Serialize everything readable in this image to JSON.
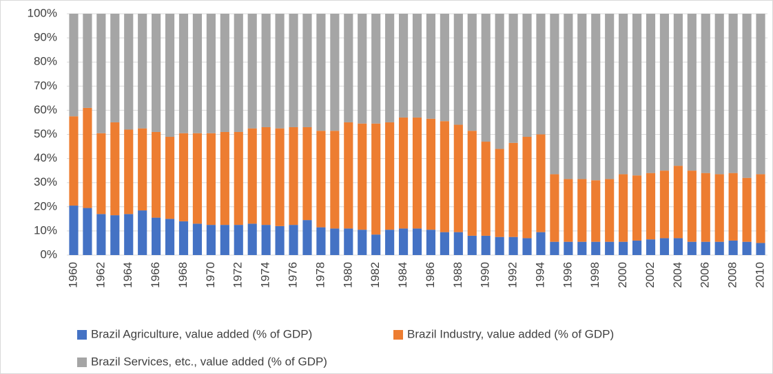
{
  "chart_data": {
    "type": "stacked_bar_100",
    "categories": [
      "1960",
      null,
      "1962",
      null,
      "1964",
      null,
      "1966",
      null,
      "1968",
      null,
      "1970",
      null,
      "1972",
      null,
      "1974",
      null,
      "1976",
      null,
      "1978",
      null,
      "1980",
      null,
      "1982",
      null,
      "1984",
      null,
      "1986",
      null,
      "1988",
      null,
      "1990",
      null,
      "1992",
      null,
      "1994",
      null,
      "1996",
      null,
      "1998",
      null,
      "2000",
      null,
      "2002",
      null,
      "2004",
      null,
      "2006",
      null,
      "2008",
      null,
      "2010"
    ],
    "series": [
      {
        "name": "Brazil Agriculture, value added (% of GDP)",
        "color": "#4472c4",
        "values": [
          20.5,
          19.5,
          17,
          16.5,
          17,
          18.5,
          15.5,
          15,
          14,
          13,
          12.5,
          12.5,
          12.5,
          13,
          12.5,
          12,
          12.5,
          14.5,
          11.5,
          11,
          11,
          10.5,
          8.5,
          10.5,
          11,
          11,
          10.5,
          9.5,
          9.5,
          8,
          8,
          7.5,
          7.5,
          7,
          9.5,
          5.5,
          5.5,
          5.5,
          5.5,
          5.5,
          5.5,
          6,
          6.5,
          7,
          7,
          5.5,
          5.5,
          5.5,
          6,
          5.5,
          5
        ]
      },
      {
        "name": "Brazil Industry, value added (% of GDP)",
        "color": "#ed7d31",
        "values": [
          37,
          41.5,
          33.5,
          38.5,
          35,
          34,
          35.5,
          34,
          36.5,
          37.5,
          38,
          38.5,
          38.5,
          39.5,
          40.5,
          40.5,
          40.5,
          38.5,
          40,
          40.5,
          44,
          44,
          46,
          44.5,
          46,
          46,
          46,
          46,
          44.5,
          43.5,
          39,
          36.5,
          39,
          42,
          40.5,
          28,
          26,
          26,
          25.5,
          26,
          28,
          27,
          27.5,
          28,
          30,
          29.5,
          28.5,
          28,
          28,
          26.5,
          28.5
        ]
      },
      {
        "name": "Brazil Services, etc., value added (% of GDP)",
        "color": "#a5a5a5",
        "values": [
          42.5,
          39,
          49.5,
          45,
          48,
          47.5,
          49,
          51,
          49.5,
          49.5,
          49.5,
          49,
          49,
          47.5,
          47,
          47.5,
          47,
          47,
          48.5,
          48.5,
          45,
          45.5,
          45.5,
          45,
          43,
          43,
          43.5,
          44.5,
          46,
          48.5,
          53,
          56,
          53.5,
          51,
          50,
          66.5,
          68.5,
          68.5,
          69,
          68.5,
          66.5,
          67,
          66,
          65,
          63,
          65,
          66,
          66.5,
          66,
          68,
          66.5
        ]
      }
    ],
    "ylim": [
      0,
      100
    ],
    "yticks": [
      {
        "value": 0,
        "label": "0%"
      },
      {
        "value": 10,
        "label": "10%"
      },
      {
        "value": 20,
        "label": "20%"
      },
      {
        "value": 30,
        "label": "30%"
      },
      {
        "value": 40,
        "label": "40%"
      },
      {
        "value": 50,
        "label": "50%"
      },
      {
        "value": 60,
        "label": "60%"
      },
      {
        "value": 70,
        "label": "70%"
      },
      {
        "value": 80,
        "label": "80%"
      },
      {
        "value": 90,
        "label": "90%"
      },
      {
        "value": 100,
        "label": "100%"
      }
    ],
    "grid": true
  }
}
